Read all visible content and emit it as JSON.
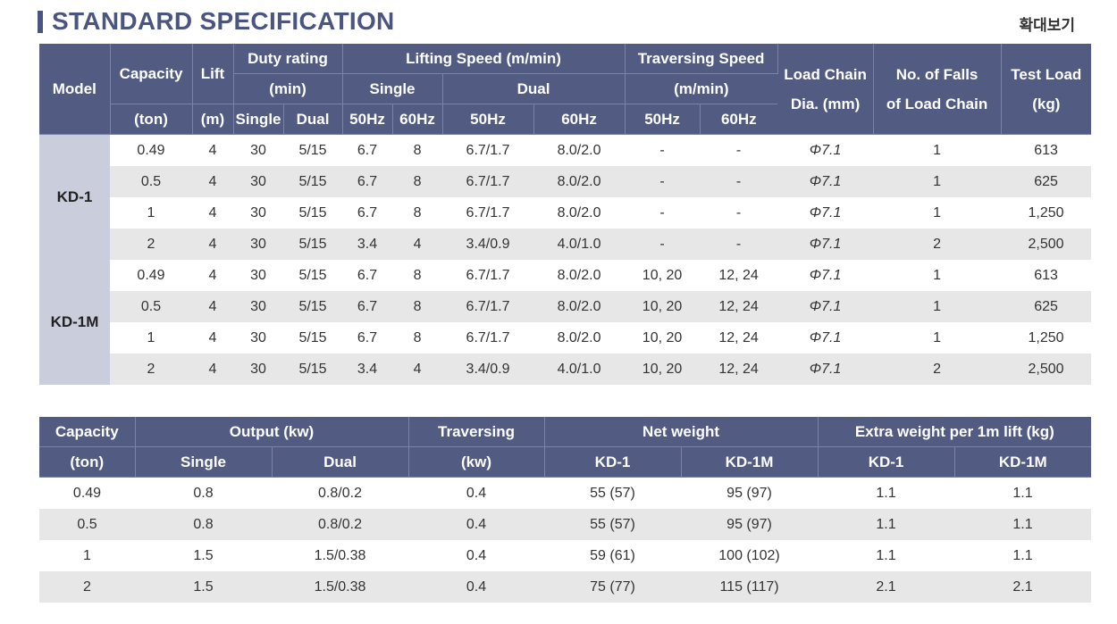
{
  "title": "STANDARD SPECIFICATION",
  "zoom_label": "확대보기",
  "spec": {
    "headers": {
      "model": "Model",
      "capacity": "Capacity",
      "capacity_unit": "(ton)",
      "lift": "Lift",
      "lift_unit": "(m)",
      "duty_rating": "Duty rating",
      "duty_unit": "(min)",
      "duty_single": "Single",
      "duty_dual": "Dual",
      "lifting_speed": "Lifting Speed (m/min)",
      "lifting_single": "Single",
      "lifting_dual": "Dual",
      "hz50": "50Hz",
      "hz60": "60Hz",
      "traversing_speed": "Traversing Speed",
      "traversing_unit": "(m/min)",
      "load_chain": "Load Chain",
      "load_chain_unit": "Dia. (mm)",
      "falls": "No. of Falls",
      "falls_sub": "of Load Chain",
      "test_load": "Test Load",
      "test_load_unit": "(kg)"
    },
    "groups": [
      {
        "model": "KD-1",
        "rows": [
          [
            "0.49",
            "4",
            "30",
            "5/15",
            "6.7",
            "8",
            "6.7/1.7",
            "8.0/2.0",
            "-",
            "-",
            "Φ7.1",
            "1",
            "613"
          ],
          [
            "0.5",
            "4",
            "30",
            "5/15",
            "6.7",
            "8",
            "6.7/1.7",
            "8.0/2.0",
            "-",
            "-",
            "Φ7.1",
            "1",
            "625"
          ],
          [
            "1",
            "4",
            "30",
            "5/15",
            "6.7",
            "8",
            "6.7/1.7",
            "8.0/2.0",
            "-",
            "-",
            "Φ7.1",
            "1",
            "1,250"
          ],
          [
            "2",
            "4",
            "30",
            "5/15",
            "3.4",
            "4",
            "3.4/0.9",
            "4.0/1.0",
            "-",
            "-",
            "Φ7.1",
            "2",
            "2,500"
          ]
        ]
      },
      {
        "model": "KD-1M",
        "rows": [
          [
            "0.49",
            "4",
            "30",
            "5/15",
            "6.7",
            "8",
            "6.7/1.7",
            "8.0/2.0",
            "10, 20",
            "12, 24",
            "Φ7.1",
            "1",
            "613"
          ],
          [
            "0.5",
            "4",
            "30",
            "5/15",
            "6.7",
            "8",
            "6.7/1.7",
            "8.0/2.0",
            "10, 20",
            "12, 24",
            "Φ7.1",
            "1",
            "625"
          ],
          [
            "1",
            "4",
            "30",
            "5/15",
            "6.7",
            "8",
            "6.7/1.7",
            "8.0/2.0",
            "10, 20",
            "12, 24",
            "Φ7.1",
            "1",
            "1,250"
          ],
          [
            "2",
            "4",
            "30",
            "5/15",
            "3.4",
            "4",
            "3.4/0.9",
            "4.0/1.0",
            "10, 20",
            "12, 24",
            "Φ7.1",
            "2",
            "2,500"
          ]
        ]
      }
    ]
  },
  "weights": {
    "headers": {
      "capacity": "Capacity",
      "capacity_unit": "(ton)",
      "output": "Output (kw)",
      "output_single": "Single",
      "output_dual": "Dual",
      "traversing": "Traversing",
      "traversing_unit": "(kw)",
      "net_weight": "Net weight",
      "net_kd1": "KD-1",
      "net_kd1m": "KD-1M",
      "extra": "Extra weight per 1m lift (kg)",
      "extra_kd1": "KD-1",
      "extra_kd1m": "KD-1M"
    },
    "rows": [
      [
        "0.49",
        "0.8",
        "0.8/0.2",
        "0.4",
        "55 (57)",
        "95 (97)",
        "1.1",
        "1.1"
      ],
      [
        "0.5",
        "0.8",
        "0.8/0.2",
        "0.4",
        "55 (57)",
        "95 (97)",
        "1.1",
        "1.1"
      ],
      [
        "1",
        "1.5",
        "1.5/0.38",
        "0.4",
        "59 (61)",
        "100 (102)",
        "1.1",
        "1.1"
      ],
      [
        "2",
        "1.5",
        "1.5/0.38",
        "0.4",
        "75 (77)",
        "115 (117)",
        "2.1",
        "2.1"
      ]
    ]
  }
}
